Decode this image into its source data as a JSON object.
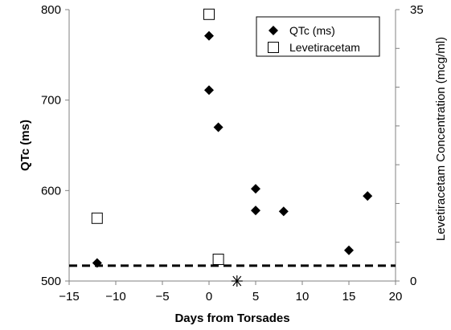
{
  "chart_data": {
    "type": "scatter",
    "xlabel": "Days from Torsades",
    "ylabel": "QTc (ms)",
    "y2label": "Levetiracetam Concentration (mcg/ml)",
    "xlim": [
      -15,
      20
    ],
    "ylim": [
      500,
      800
    ],
    "y2lim": [
      0,
      35
    ],
    "xticks": [
      -15,
      -10,
      -5,
      0,
      5,
      10,
      15,
      20
    ],
    "yticks": [
      500,
      600,
      700,
      800
    ],
    "y2ticks": [
      0,
      35
    ],
    "y2minor_step": 5,
    "legend_position": "top-right",
    "grid": false,
    "series": [
      {
        "name": "QTc (ms)",
        "marker": "diamond-filled",
        "axis": "left",
        "color": "#000000",
        "points": [
          {
            "x": -12,
            "y": 520
          },
          {
            "x": 0,
            "y": 771
          },
          {
            "x": 0,
            "y": 711
          },
          {
            "x": 1,
            "y": 670
          },
          {
            "x": 5,
            "y": 602
          },
          {
            "x": 5,
            "y": 578
          },
          {
            "x": 8,
            "y": 577
          },
          {
            "x": 15,
            "y": 534
          },
          {
            "x": 17,
            "y": 594
          }
        ]
      },
      {
        "name": "Levetiracetam",
        "marker": "square-open",
        "axis": "right",
        "color": "#000000",
        "points": [
          {
            "x": -12,
            "y": 8.1
          },
          {
            "x": 0,
            "y": 34.4
          },
          {
            "x": 1,
            "y": 2.8
          }
        ]
      }
    ],
    "reference_line": {
      "y": 517,
      "style": "dashed",
      "axis": "left"
    },
    "event_marker": {
      "x": 3,
      "y": 500,
      "symbol": "asterisk"
    }
  }
}
